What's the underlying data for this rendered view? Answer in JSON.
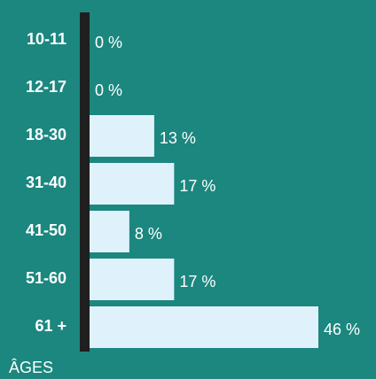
{
  "chart_data": {
    "type": "bar",
    "orientation": "horizontal",
    "categories": [
      "10-11",
      "12-17",
      "18-30",
      "31-40",
      "41-50",
      "51-60",
      "61 +"
    ],
    "values": [
      0,
      0,
      13,
      17,
      8,
      17,
      46
    ],
    "value_labels": [
      "0 %",
      "0 %",
      "13 %",
      "17 %",
      "8 %",
      "17 %",
      "46 %"
    ],
    "axis_title": "ÂGES",
    "xlim": [
      0,
      46
    ],
    "colors": {
      "background": "#1b877f",
      "bar": "#dff2fc",
      "axis": "#1f1f1f",
      "text": "#ffffff"
    }
  }
}
